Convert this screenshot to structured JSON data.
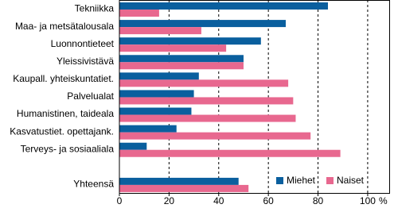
{
  "chart_data": {
    "type": "barh",
    "categories": [
      "Tekniikka",
      "Maa- ja metsätalousala",
      "Luonnontieteet",
      "Yleissivistävä",
      "Kaupall. yhteiskuntatiet.",
      "Palvelualat",
      "Humanistinen, taideala",
      "Kasvatustiet. opettajank.",
      "Terveys- ja sosiaaliala",
      null,
      "Yhteensä"
    ],
    "series": [
      {
        "name": "Miehet",
        "color": "#0a5f9e",
        "values": [
          84,
          67,
          57,
          50,
          32,
          30,
          29,
          23,
          11,
          null,
          48
        ]
      },
      {
        "name": "Naiset",
        "color": "#e8688f",
        "values": [
          16,
          33,
          43,
          50,
          68,
          70,
          71,
          77,
          89,
          null,
          52
        ]
      }
    ],
    "xlabel": "%",
    "xlim": [
      0,
      109
    ],
    "xticks": [
      0,
      20,
      40,
      60,
      80,
      100
    ],
    "grid": true,
    "legend": "lower right"
  }
}
